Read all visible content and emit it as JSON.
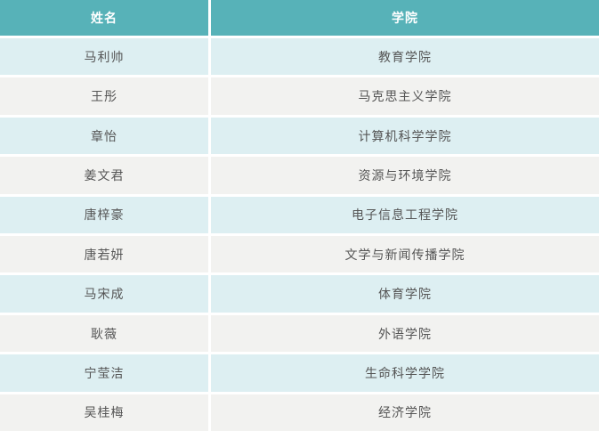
{
  "table": {
    "columns": [
      {
        "label": "姓名"
      },
      {
        "label": "学院"
      }
    ],
    "rows": [
      {
        "name": "马利帅",
        "college": "教育学院"
      },
      {
        "name": "王彤",
        "college": "马克思主义学院"
      },
      {
        "name": "章怡",
        "college": "计算机科学学院"
      },
      {
        "name": "姜文君",
        "college": "资源与环境学院"
      },
      {
        "name": "唐梓豪",
        "college": "电子信息工程学院"
      },
      {
        "name": "唐若妍",
        "college": "文学与新闻传播学院"
      },
      {
        "name": "马宋成",
        "college": "体育学院"
      },
      {
        "name": "耿薇",
        "college": "外语学院"
      },
      {
        "name": "宁莹洁",
        "college": "生命科学学院"
      },
      {
        "name": "吴桂梅",
        "college": "经济学院"
      }
    ],
    "colors": {
      "header_bg": "#57b2b8",
      "row_odd_bg": "#ddeff2",
      "row_even_bg": "#f2f2f0",
      "header_text": "#ffffff",
      "cell_text": "#555555",
      "divider": "#ffffff"
    }
  }
}
